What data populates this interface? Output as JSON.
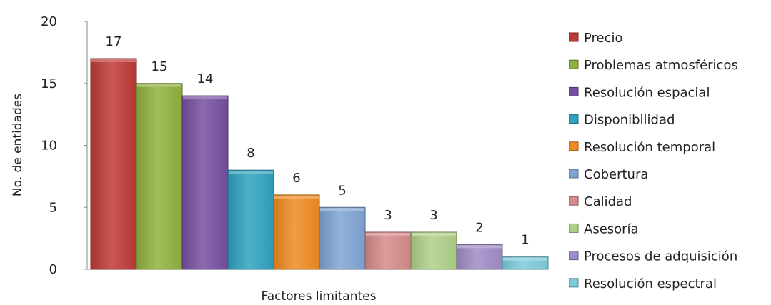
{
  "chart_data": {
    "type": "bar",
    "title": "",
    "xlabel": "Factores limitantes",
    "ylabel": "No. de entidades",
    "ylim": [
      0,
      20
    ],
    "yticks": [
      0,
      5,
      10,
      15,
      20
    ],
    "grid": false,
    "legend_position": "right",
    "categories": [
      "Precio",
      "Problemas atmosféricos",
      "Resolución espacial",
      "Disponibilidad",
      "Resolución temporal",
      "Cobertura",
      "Calidad",
      "Asesoría",
      "Procesos de adquisición",
      "Resolución espectral"
    ],
    "values": [
      17,
      15,
      14,
      8,
      6,
      5,
      3,
      3,
      2,
      1
    ],
    "colors": [
      "#be3a36",
      "#8fb23e",
      "#7650a0",
      "#2fa3c0",
      "#f08a22",
      "#7fa4d4",
      "#d68a8a",
      "#b0d088",
      "#a08cc6",
      "#7ecbdc"
    ]
  }
}
